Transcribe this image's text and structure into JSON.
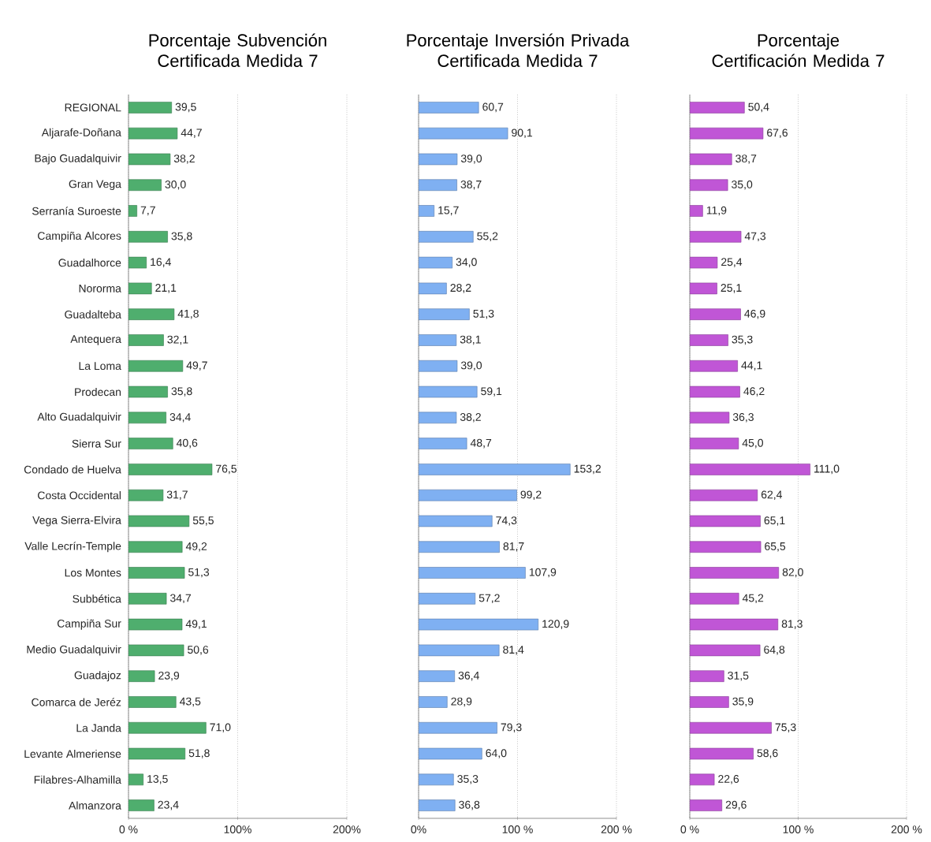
{
  "chart_data": [
    {
      "type": "bar",
      "orientation": "horizontal",
      "title": "Porcentaje Subvención Certificada Medida 7",
      "color": "#4fae6e",
      "grid": "x",
      "categories": [
        "REGIONAL",
        "Aljarafe-Doñana",
        "Bajo Guadalquivir",
        "Gran Vega",
        "Serranía Suroeste",
        "Campiña Alcores",
        "Guadalhorce",
        "Nororma",
        "Guadalteba",
        "Antequera",
        "La Loma",
        "Prodecan",
        "Alto Guadalquivir",
        "Sierra Sur",
        "Condado de Huelva",
        "Costa Occidental",
        "Vega Sierra-Elvira",
        "Valle Lecrín-Temple",
        "Los Montes",
        "Subbética",
        "Campiña Sur",
        "Medio Guadalquivir",
        "Guadajoz",
        "Comarca de Jeréz",
        "La Janda",
        "Levante Almeriense",
        "Filabres-Alhamilla",
        "Almanzora"
      ],
      "values": [
        39.5,
        44.7,
        38.2,
        30.0,
        7.7,
        35.8,
        16.4,
        21.1,
        41.8,
        32.1,
        49.7,
        35.8,
        34.4,
        40.6,
        76.5,
        31.7,
        55.5,
        49.2,
        51.3,
        34.7,
        49.1,
        50.6,
        23.9,
        43.5,
        71.0,
        51.8,
        13.5,
        23.4
      ],
      "value_labels": [
        "39,5",
        "44,7",
        "38,2",
        "30,0",
        "7,7",
        "35,8",
        "16,4",
        "21,1",
        "41,8",
        "32,1",
        "49,7",
        "35,8",
        "34,4",
        "40,6",
        "76,5",
        "31,7",
        "55,5",
        "49,2",
        "51,3",
        "34,7",
        "49,1",
        "50,6",
        "23,9",
        "43,5",
        "71,0",
        "51,8",
        "13,5",
        "23,4"
      ],
      "xlim": [
        0,
        200
      ],
      "xticks": [
        {
          "value": 0,
          "label": "0 %"
        },
        {
          "value": 100,
          "label": "100%"
        },
        {
          "value": 200,
          "label": "200%"
        }
      ]
    },
    {
      "type": "bar",
      "orientation": "horizontal",
      "title": "Porcentaje Inversión Privada Certificada Medida 7",
      "color": "#7fb0f2",
      "grid": "x",
      "tick_labels": "x",
      "categories": [
        null,
        null,
        null,
        null,
        null,
        null,
        null,
        null,
        null,
        null,
        null,
        null,
        null,
        null,
        null,
        null,
        null,
        null,
        null,
        null,
        null,
        null,
        null,
        null,
        null,
        null,
        null,
        null
      ],
      "values": [
        60.7,
        90.1,
        39.0,
        38.7,
        15.7,
        55.2,
        34.0,
        28.2,
        51.3,
        38.1,
        39.0,
        59.1,
        38.2,
        48.7,
        153.2,
        99.2,
        74.3,
        81.7,
        107.9,
        57.2,
        120.9,
        81.4,
        36.4,
        28.9,
        79.3,
        64.0,
        35.3,
        36.8
      ],
      "value_labels": [
        "60,7",
        "90,1",
        "39,0",
        "38,7",
        "15,7",
        "55,2",
        "34,0",
        "28,2",
        "51,3",
        "38,1",
        "39,0",
        "59,1",
        "38,2",
        "48,7",
        "153,2",
        "99,2",
        "74,3",
        "81,7",
        "107,9",
        "57,2",
        "120,9",
        "81,4",
        "36,4",
        "28,9",
        "79,3",
        "64,0",
        "35,3",
        "36,8"
      ],
      "xlim": [
        0,
        200
      ],
      "xticks": [
        {
          "value": 0,
          "label": "0%"
        },
        {
          "value": 100,
          "label": "100 %"
        },
        {
          "value": 200,
          "label": "200 %"
        }
      ]
    },
    {
      "type": "bar",
      "orientation": "horizontal",
      "title": "Porcentaje  Certificación Medida 7",
      "color": "#c056d6",
      "grid": "x",
      "tick_labels": "x",
      "categories": [
        null,
        null,
        null,
        null,
        null,
        null,
        null,
        null,
        null,
        null,
        null,
        null,
        null,
        null,
        null,
        null,
        null,
        null,
        null,
        null,
        null,
        null,
        null,
        null,
        null,
        null,
        null,
        null
      ],
      "values": [
        50.4,
        67.6,
        38.7,
        35.0,
        11.9,
        47.3,
        25.4,
        25.1,
        46.9,
        35.3,
        44.1,
        46.2,
        36.3,
        45.0,
        111.0,
        62.4,
        65.1,
        65.5,
        82.0,
        45.2,
        81.3,
        64.8,
        31.5,
        35.9,
        75.3,
        58.6,
        22.6,
        29.6
      ],
      "value_labels": [
        "50,4",
        "67,6",
        "38,7",
        "35,0",
        "11,9",
        "47,3",
        "25,4",
        "25,1",
        "46,9",
        "35,3",
        "44,1",
        "46,2",
        "36,3",
        "45,0",
        "111,0",
        "62,4",
        "65,1",
        "65,5",
        "82,0",
        "45,2",
        "81,3",
        "64,8",
        "31,5",
        "35,9",
        "75,3",
        "58,6",
        "22,6",
        "29,6"
      ],
      "xlim": [
        0,
        200
      ],
      "xticks": [
        {
          "value": 0,
          "label": "0 %"
        },
        {
          "value": 100,
          "label": "100 %"
        },
        {
          "value": 200,
          "label": "200 %"
        }
      ]
    }
  ]
}
